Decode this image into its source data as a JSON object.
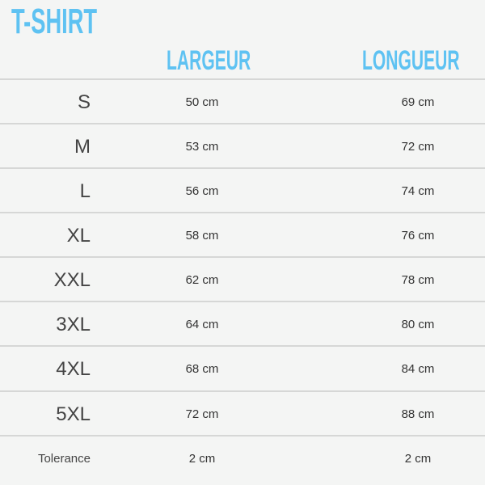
{
  "title": "T-SHIRT",
  "headers": {
    "width": "LARGEUR",
    "length": "LONGUEUR"
  },
  "accent_color": "#5ec2f2",
  "rows": [
    {
      "size": "S",
      "width": "50 cm",
      "length": "69 cm"
    },
    {
      "size": "M",
      "width": "53 cm",
      "length": "72 cm"
    },
    {
      "size": "L",
      "width": "56 cm",
      "length": "74 cm"
    },
    {
      "size": "XL",
      "width": "58 cm",
      "length": "76 cm"
    },
    {
      "size": "XXL",
      "width": "62 cm",
      "length": "78 cm"
    },
    {
      "size": "3XL",
      "width": "64 cm",
      "length": "80 cm"
    },
    {
      "size": "4XL",
      "width": "68 cm",
      "length": "84 cm"
    },
    {
      "size": "5XL",
      "width": "72 cm",
      "length": "88 cm"
    },
    {
      "size": "Tolerance",
      "width": "2 cm",
      "length": "2 cm"
    }
  ]
}
